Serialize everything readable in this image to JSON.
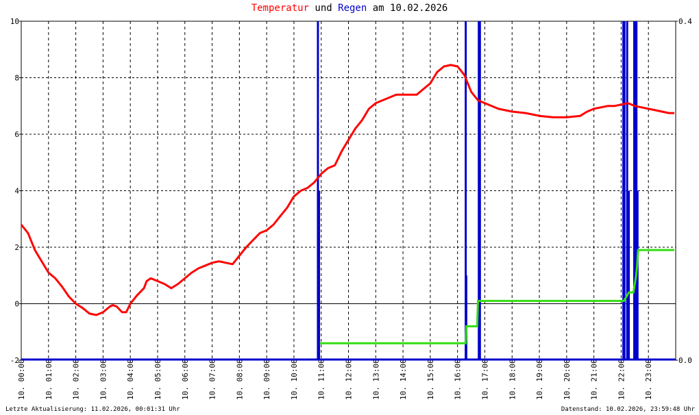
{
  "title": {
    "part1": "Temperatur",
    "part2": " und ",
    "part3": "Regen",
    "part4": " am 10.02.2026"
  },
  "footer": {
    "left": "Letzte Aktualisierung: 11.02.2026, 00:01:31 Uhr",
    "right": "Datenstand: 10.02.2026, 23:59:48 Uhr"
  },
  "colors": {
    "temperature": "#ff0000",
    "rain": "#0000cc",
    "rain_cumulative": "#33dd11",
    "grid": "#000000"
  },
  "chart_data": {
    "type": "line",
    "x_unit": "hour of day",
    "xlim": [
      0,
      24
    ],
    "ylim_left": [
      -2,
      10
    ],
    "ylim_right": [
      0.0,
      0.4
    ],
    "y_ticks_left": [
      "10",
      "8",
      "6",
      "4",
      "2",
      "0",
      "-2"
    ],
    "y_ticks_right": [
      "0.4",
      "0.0"
    ],
    "x_tick_labels": [
      "10. 00:00",
      "10. 01:00",
      "10. 02:00",
      "10. 03:00",
      "10. 04:00",
      "10. 05:00",
      "10. 06:00",
      "10. 07:00",
      "10. 08:00",
      "10. 09:00",
      "10. 10:00",
      "10. 11:00",
      "10. 12:00",
      "10. 13:00",
      "10. 14:00",
      "10. 15:00",
      "10. 16:00",
      "10. 17:00",
      "10. 18:00",
      "10. 19:00",
      "10. 20:00",
      "10. 21:00",
      "10. 22:00",
      "10. 23:00"
    ],
    "grid": true,
    "series": [
      {
        "name": "Temperatur",
        "axis": "left",
        "points": [
          [
            0,
            2.8
          ],
          [
            0.25,
            2.5
          ],
          [
            0.5,
            1.9
          ],
          [
            0.75,
            1.5
          ],
          [
            1,
            1.1
          ],
          [
            1.25,
            0.9
          ],
          [
            1.5,
            0.6
          ],
          [
            1.75,
            0.25
          ],
          [
            2,
            0.0
          ],
          [
            2.25,
            -0.15
          ],
          [
            2.5,
            -0.35
          ],
          [
            2.75,
            -0.4
          ],
          [
            3,
            -0.3
          ],
          [
            3.25,
            -0.1
          ],
          [
            3.35,
            -0.05
          ],
          [
            3.5,
            -0.1
          ],
          [
            3.7,
            -0.3
          ],
          [
            3.85,
            -0.3
          ],
          [
            4,
            0.0
          ],
          [
            4.25,
            0.3
          ],
          [
            4.5,
            0.55
          ],
          [
            4.6,
            0.8
          ],
          [
            4.75,
            0.9
          ],
          [
            5,
            0.8
          ],
          [
            5.25,
            0.7
          ],
          [
            5.5,
            0.55
          ],
          [
            5.75,
            0.7
          ],
          [
            6,
            0.9
          ],
          [
            6.25,
            1.1
          ],
          [
            6.5,
            1.25
          ],
          [
            6.75,
            1.35
          ],
          [
            7,
            1.45
          ],
          [
            7.25,
            1.5
          ],
          [
            7.5,
            1.45
          ],
          [
            7.75,
            1.4
          ],
          [
            8,
            1.7
          ],
          [
            8.25,
            2.0
          ],
          [
            8.5,
            2.25
          ],
          [
            8.75,
            2.5
          ],
          [
            9,
            2.6
          ],
          [
            9.25,
            2.8
          ],
          [
            9.5,
            3.1
          ],
          [
            9.75,
            3.4
          ],
          [
            10,
            3.8
          ],
          [
            10.25,
            4.0
          ],
          [
            10.5,
            4.1
          ],
          [
            10.75,
            4.3
          ],
          [
            11,
            4.6
          ],
          [
            11.25,
            4.8
          ],
          [
            11.5,
            4.9
          ],
          [
            11.75,
            5.4
          ],
          [
            12,
            5.8
          ],
          [
            12.25,
            6.2
          ],
          [
            12.5,
            6.5
          ],
          [
            12.75,
            6.9
          ],
          [
            13,
            7.1
          ],
          [
            13.25,
            7.2
          ],
          [
            13.5,
            7.3
          ],
          [
            13.75,
            7.4
          ],
          [
            14,
            7.4
          ],
          [
            14.25,
            7.4
          ],
          [
            14.5,
            7.4
          ],
          [
            14.75,
            7.6
          ],
          [
            15,
            7.8
          ],
          [
            15.25,
            8.2
          ],
          [
            15.5,
            8.4
          ],
          [
            15.75,
            8.45
          ],
          [
            16,
            8.4
          ],
          [
            16.25,
            8.1
          ],
          [
            16.5,
            7.5
          ],
          [
            16.75,
            7.2
          ],
          [
            17,
            7.1
          ],
          [
            17.25,
            7.0
          ],
          [
            17.5,
            6.9
          ],
          [
            18,
            6.8
          ],
          [
            18.5,
            6.75
          ],
          [
            19,
            6.65
          ],
          [
            19.5,
            6.6
          ],
          [
            20,
            6.6
          ],
          [
            20.5,
            6.65
          ],
          [
            20.75,
            6.8
          ],
          [
            21,
            6.9
          ],
          [
            21.25,
            6.95
          ],
          [
            21.5,
            7.0
          ],
          [
            21.75,
            7.0
          ],
          [
            22,
            7.05
          ],
          [
            22.25,
            7.1
          ],
          [
            22.5,
            7.0
          ],
          [
            22.75,
            6.95
          ],
          [
            23,
            6.9
          ],
          [
            23.25,
            6.85
          ],
          [
            23.5,
            6.8
          ],
          [
            23.75,
            6.75
          ],
          [
            23.95,
            6.75
          ]
        ]
      },
      {
        "name": "Regen",
        "axis": "right",
        "bars": [
          [
            10.88,
            0.4
          ],
          [
            10.92,
            0.2
          ],
          [
            16.3,
            0.4
          ],
          [
            16.32,
            0.1
          ],
          [
            16.78,
            0.4
          ],
          [
            16.82,
            0.4
          ],
          [
            22.08,
            0.4
          ],
          [
            22.12,
            0.4
          ],
          [
            22.22,
            0.4
          ],
          [
            22.28,
            0.2
          ],
          [
            22.48,
            0.4
          ],
          [
            22.52,
            0.4
          ],
          [
            22.56,
            0.4
          ],
          [
            22.6,
            0.2
          ]
        ]
      },
      {
        "axis": "right",
        "points": [
          [
            10.95,
            0.02
          ],
          [
            16.3,
            0.02
          ],
          [
            16.32,
            0.04
          ],
          [
            16.72,
            0.04
          ],
          [
            16.75,
            0.07
          ],
          [
            22.1,
            0.07
          ],
          [
            22.28,
            0.08
          ],
          [
            22.45,
            0.08
          ],
          [
            22.55,
            0.1
          ],
          [
            22.58,
            0.11
          ],
          [
            22.62,
            0.13
          ],
          [
            23.95,
            0.13
          ]
        ]
      }
    ]
  }
}
